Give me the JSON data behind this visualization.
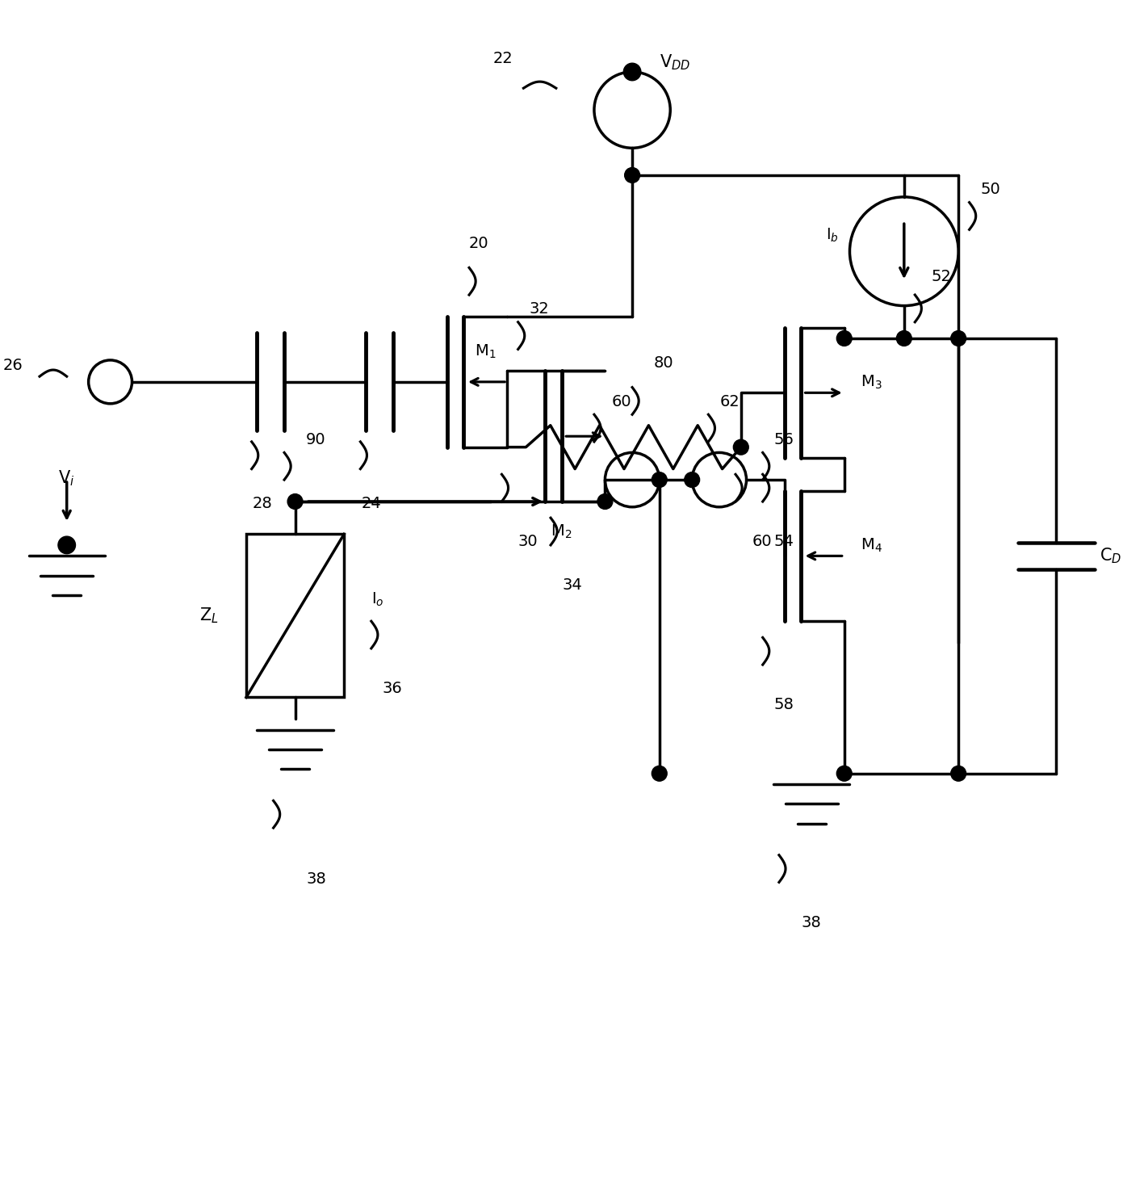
{
  "bg": "#ffffff",
  "lc": "#000000",
  "lw": 2.5,
  "fw": 13.91,
  "fh": 14.71,
  "fs": 14,
  "labels": {
    "VDD": "V$_{DD}$",
    "Vi": "V$_i$",
    "Ib": "I$_b$",
    "Io": "I$_o$",
    "ZL": "Z$_L$",
    "CD": "C$_D$",
    "M1": "M$_1$",
    "M2": "M$_2$",
    "M3": "M$_3$",
    "M4": "M$_4$",
    "n22": "22",
    "n20": "20",
    "n24": "24",
    "n26": "26",
    "n28": "28",
    "n30": "30",
    "n32": "32",
    "n34": "34",
    "n36": "36",
    "n38": "38",
    "n50": "50",
    "n52": "52",
    "n54": "54",
    "n56": "56",
    "n58": "58",
    "n60": "60",
    "n62": "62",
    "n80": "80",
    "n90": "90"
  }
}
